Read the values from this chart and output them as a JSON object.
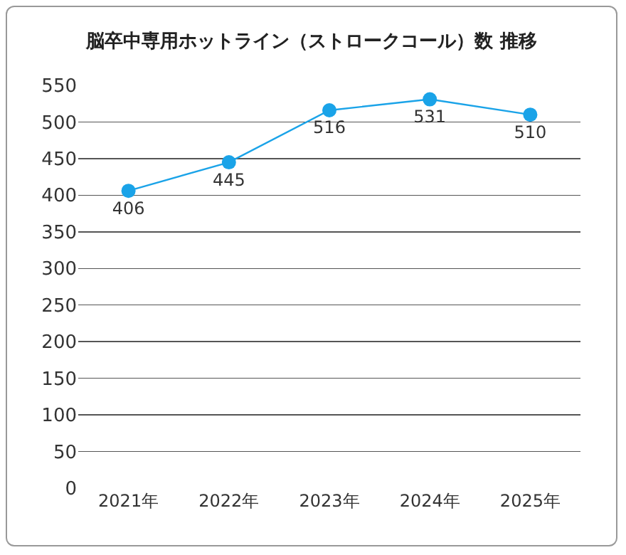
{
  "chart_data": {
    "type": "line",
    "title": "脳卒中専用ホットライン（ストロークコール）数 推移",
    "categories": [
      "2021年",
      "2022年",
      "2023年",
      "2024年",
      "2025年"
    ],
    "series": [
      {
        "color": "#1aa3e8",
        "values": [
          406,
          445,
          516,
          531,
          510
        ]
      }
    ],
    "data_labels": true,
    "marker": "circle",
    "line_style": "solid",
    "ylim": [
      0,
      550
    ],
    "yticks": [
      0,
      50,
      100,
      150,
      200,
      250,
      300,
      350,
      400,
      450,
      500,
      550
    ],
    "grid": "y",
    "legend": false
  }
}
